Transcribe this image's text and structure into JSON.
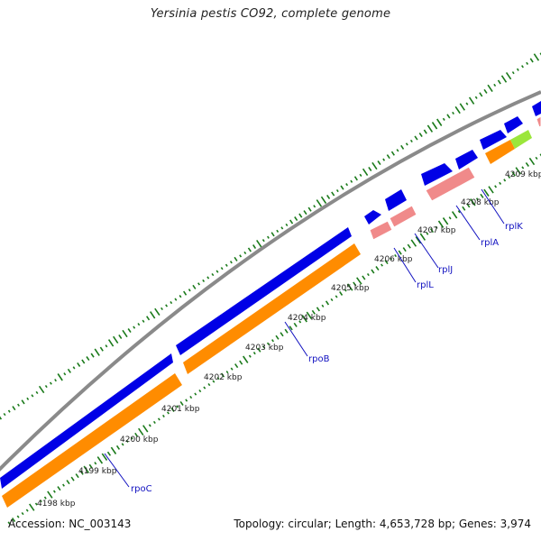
{
  "title": "Yersinia pestis CO92, complete genome",
  "footer": {
    "accession": "Accession: NC_003143",
    "info": "Topology: circular; Length: 4,653,728 bp; Genes: 3,974"
  },
  "colors": {
    "backbone": "#8a8a8a",
    "cds": "#0000e6",
    "rrna_trna": "#f08a8a",
    "orange": "#ff8c00",
    "green": "#9be63b",
    "gc_ticks": "#1a7a1a",
    "gene_label": "#1010c0"
  },
  "kbp_labels": [
    "4198 kbp",
    "4199 kbp",
    "4200 kbp",
    "4201 kbp",
    "4202 kbp",
    "4203 kbp",
    "4204 kbp",
    "4205 kbp",
    "4206 kbp",
    "4207 kbp",
    "4208 kbp",
    "4209 kbp"
  ],
  "genes": [
    "rpoC",
    "rpoB",
    "rplL",
    "rplJ",
    "rplA",
    "rplK"
  ]
}
